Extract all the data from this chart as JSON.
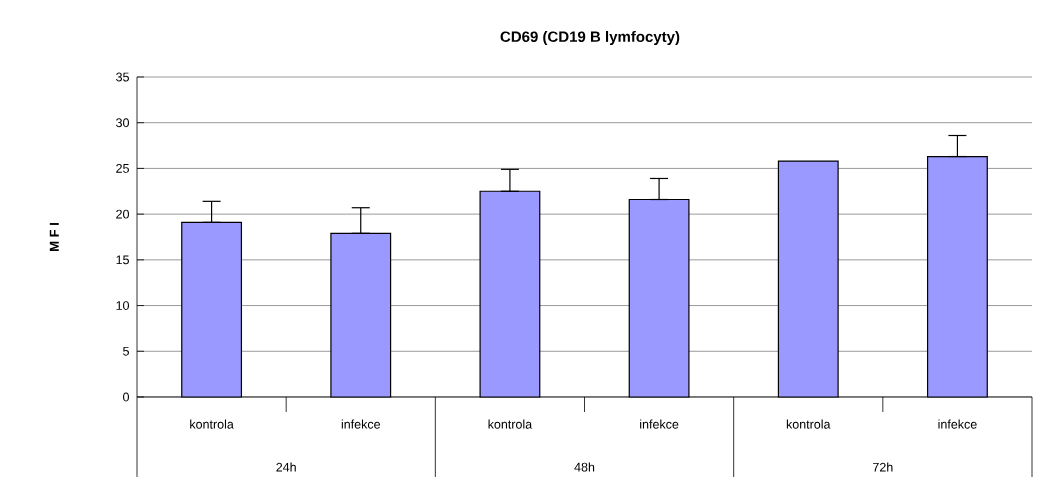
{
  "chart_data": {
    "type": "bar",
    "title": "CD69 (CD19 B lymfocyty)",
    "ylabel": "M F I",
    "categories": [
      "kontrola",
      "infekce",
      "kontrola",
      "infekce",
      "kontrola",
      "infekce"
    ],
    "values": [
      19.1,
      17.9,
      22.5,
      21.6,
      25.8,
      26.3
    ],
    "errors": [
      [
        19.1,
        21.4
      ],
      [
        17.9,
        20.7
      ],
      [
        22.5,
        24.9
      ],
      [
        21.6,
        23.9
      ],
      null,
      [
        26.3,
        28.6
      ]
    ],
    "color": "#9999ff",
    "annotations": [
      "24h",
      "48h",
      "72h"
    ],
    "ylim": [
      0,
      35
    ],
    "yticks": [
      0,
      5,
      10,
      15,
      20,
      25,
      30,
      35
    ],
    "grid": "y"
  }
}
